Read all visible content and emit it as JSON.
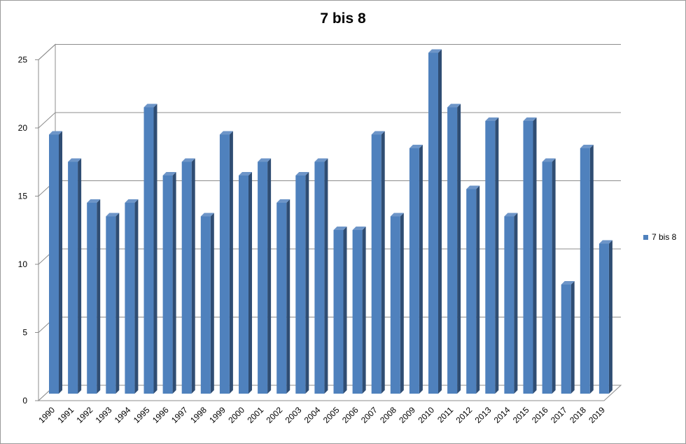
{
  "chart_data": {
    "type": "bar",
    "title": "7 bis 8",
    "xlabel": "",
    "ylabel": "",
    "categories": [
      "1990",
      "1991",
      "1992",
      "1993",
      "1994",
      "1995",
      "1996",
      "1997",
      "1998",
      "1999",
      "2000",
      "2001",
      "2002",
      "2003",
      "2004",
      "2005",
      "2006",
      "2007",
      "2008",
      "2009",
      "2010",
      "2011",
      "2012",
      "2013",
      "2014",
      "2015",
      "2016",
      "2017",
      "2018",
      "2019"
    ],
    "series": [
      {
        "name": "7 bis 8",
        "color": "#4f81bd",
        "values": [
          19,
          17,
          14,
          13,
          14,
          21,
          16,
          17,
          13,
          19,
          16,
          17,
          14,
          16,
          17,
          12,
          12,
          19,
          13,
          18,
          25,
          21,
          15,
          20,
          13,
          20,
          17,
          8,
          18,
          11
        ]
      }
    ],
    "ylim": [
      0,
      25
    ],
    "yticks": [
      0,
      5,
      10,
      15,
      20,
      25
    ],
    "grid": true,
    "legend_position": "right",
    "style": "3d-column"
  }
}
